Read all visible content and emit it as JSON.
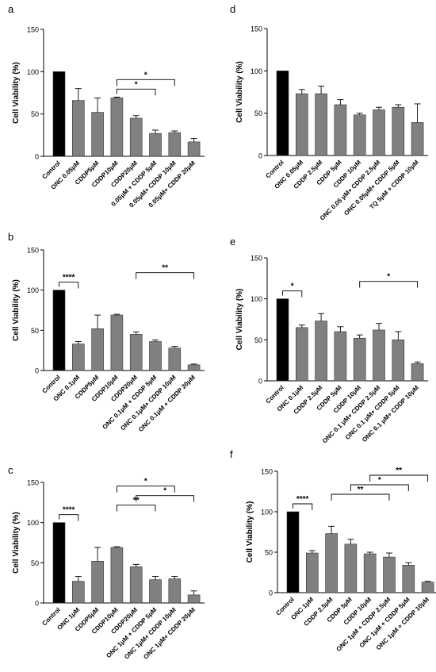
{
  "figure": {
    "background": "#ffffff",
    "bar_colors": {
      "control": "#000000",
      "treatment": "#808080"
    }
  },
  "chart_data": [
    {
      "panel": "a",
      "type": "bar",
      "ylabel": "Cell Viability (%)",
      "ylim": [
        0,
        150
      ],
      "yticks": [
        0,
        50,
        100,
        150
      ],
      "categories": [
        "Control",
        "ONC 0.05μM",
        "CDDP5μM",
        "CDDP10μM",
        "CDDP20μM",
        "0.05μM + CDDP 5μM",
        "0.05μM+ CDDP 10μM",
        "0.05μM+ CDDP 20μM"
      ],
      "values": [
        100,
        66,
        52,
        69,
        45,
        27,
        28,
        17
      ],
      "errors": [
        0,
        14,
        17,
        1,
        3,
        4,
        2,
        4
      ],
      "significance": [
        {
          "from": 3,
          "to": 5,
          "label": "*"
        },
        {
          "from": 3,
          "to": 6,
          "label": "*"
        }
      ]
    },
    {
      "panel": "b",
      "type": "bar",
      "ylabel": "Cell Viability (%)",
      "ylim": [
        0,
        150
      ],
      "yticks": [
        0,
        50,
        100,
        150
      ],
      "categories": [
        "Control",
        "ONC 0.1μM",
        "CDDP5μM",
        "CDDP10μM",
        "CDDP20μM",
        "ONC 0.1μM + CDDP 5μM",
        "ONC 0.1μM+ CDDP 10μM",
        "ONC 0.1μM + CDDP 20μM"
      ],
      "values": [
        100,
        33,
        52,
        69,
        45,
        36,
        28,
        7
      ],
      "errors": [
        0,
        3,
        17,
        1,
        3,
        2,
        2,
        1
      ],
      "significance": [
        {
          "from": 0,
          "to": 1,
          "label": "****"
        },
        {
          "from": 4,
          "to": 7,
          "label": "**"
        }
      ]
    },
    {
      "panel": "c",
      "type": "bar",
      "ylabel": "Cell Viability (%)",
      "ylim": [
        0,
        150
      ],
      "yticks": [
        0,
        50,
        100,
        150
      ],
      "categories": [
        "Control",
        "ONC 1μM",
        "CDDP5μM",
        "CDDP10μM",
        "CDDP20μM",
        "ONC 1μM + CDDP 5μM",
        "ONC 1μM+ CDDP 10μM",
        "ONC 1μM+ CDDP 20μM"
      ],
      "values": [
        100,
        27,
        52,
        69,
        45,
        29,
        30,
        10
      ],
      "errors": [
        0,
        6,
        17,
        1,
        3,
        4,
        3,
        5
      ],
      "significance": [
        {
          "from": 0,
          "to": 1,
          "label": "****"
        },
        {
          "from": 3,
          "to": 5,
          "label": "**"
        },
        {
          "from": 4,
          "to": 7,
          "label": "*"
        },
        {
          "from": 3,
          "to": 6,
          "label": "*"
        }
      ]
    },
    {
      "panel": "d",
      "type": "bar",
      "ylabel": "Cell Viability (%)",
      "ylim": [
        0,
        150
      ],
      "yticks": [
        0,
        50,
        100,
        150
      ],
      "categories": [
        "Control",
        "ONC 0.05μM",
        "CDDP 2.5μM",
        "CDDP 5μM",
        "CDDP 10μM",
        "ONC 0.05 μM+ CDDP 2.5μM",
        "ONC 0.05μM+ CDDP 5μM",
        "TQ 5μM + CDDP 10μM"
      ],
      "values": [
        100,
        73,
        73,
        60,
        48,
        54,
        57,
        39
      ],
      "errors": [
        0,
        5,
        9,
        6,
        2,
        3,
        3,
        22
      ],
      "significance": []
    },
    {
      "panel": "e",
      "type": "bar",
      "ylabel": "Cell Viability (%)",
      "ylim": [
        0,
        150
      ],
      "yticks": [
        0,
        50,
        100,
        150
      ],
      "categories": [
        "Control",
        "ONC 0.1μM",
        "CDDP 2.5μM",
        "CDDP 5μM",
        "CDDP 10μM",
        "ONC 0.1 μM+ CDDP 2.5μM",
        "ONC 0.1 μM+ CDDP 5μM",
        "ONC 0.1 μM+ CDDP 10μM"
      ],
      "values": [
        100,
        65,
        73,
        60,
        52,
        62,
        50,
        21
      ],
      "errors": [
        0,
        3,
        9,
        6,
        4,
        8,
        10,
        2
      ],
      "significance": [
        {
          "from": 0,
          "to": 1,
          "label": "*"
        },
        {
          "from": 4,
          "to": 7,
          "label": "*"
        }
      ]
    },
    {
      "panel": "f",
      "type": "bar",
      "ylabel": "Cell Viability (%)",
      "ylim": [
        0,
        150
      ],
      "yticks": [
        0,
        50,
        100,
        150
      ],
      "categories": [
        "Control",
        "ONC 1μM",
        "CDDP 2.5μM",
        "CDDP 5μM",
        "CDDP 10μM",
        "ONC 1μM + CDDP 2.5μM",
        "ONC 1μM + CDDP 5μM",
        "ONC 1μM + CDDP 10μM"
      ],
      "values": [
        100,
        49,
        73,
        60,
        48,
        44,
        34,
        13
      ],
      "errors": [
        0,
        3,
        9,
        6,
        2,
        5,
        3,
        1
      ],
      "significance": [
        {
          "from": 0,
          "to": 1,
          "label": "****"
        },
        {
          "from": 2,
          "to": 5,
          "label": "**"
        },
        {
          "from": 3,
          "to": 6,
          "label": "*"
        },
        {
          "from": 4,
          "to": 7,
          "label": "**"
        }
      ]
    }
  ]
}
